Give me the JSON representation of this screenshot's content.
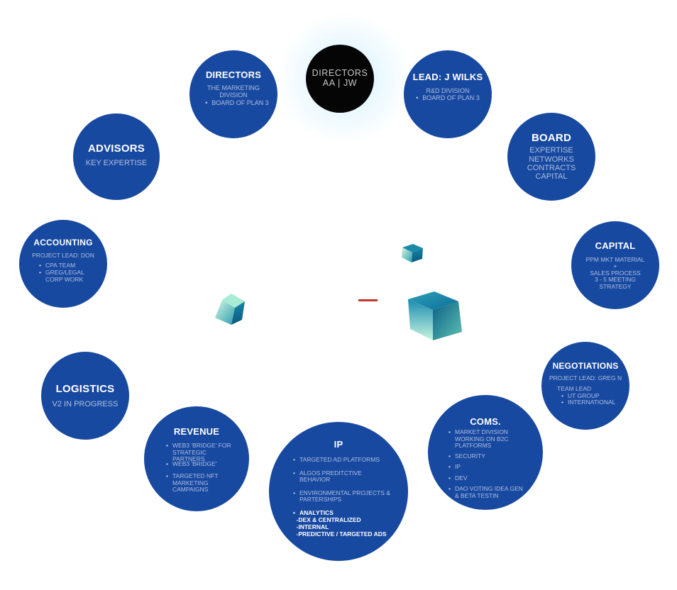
{
  "core": {
    "line1": "DIRECTORS",
    "line2": "AA | JW"
  },
  "directors": {
    "title": "DIRECTORS",
    "line1": "THE MARKETING",
    "line2": "DIVISION",
    "items": [
      "BOARD OF PLAN 3"
    ]
  },
  "lead": {
    "title": "LEAD: J WILKS",
    "line1": "R&D DIVISION",
    "items": [
      "BOARD OF PLAN 3"
    ]
  },
  "advisors": {
    "title": "ADVISORS",
    "line1": "KEY EXPERTISE"
  },
  "board": {
    "title": "BOARD",
    "lines": [
      "EXPERTISE",
      "NETWORKS",
      "CONTRACTS",
      "CAPITAL"
    ]
  },
  "accounting": {
    "title": "ACCOUNTING",
    "line1": "PROJECT LEAD: DON",
    "items": [
      "CPA TEAM",
      "GREG/LEGAL CORP WORK"
    ]
  },
  "capital": {
    "title": "CAPITAL",
    "lines": [
      "PPM MKT MATERIAL",
      "+",
      "SALES PROCESS",
      "3 - 5 MEETING",
      "STRATEGY"
    ]
  },
  "logistics": {
    "title": "LOGISTICS",
    "line1": "V2 IN PROGRESS"
  },
  "negotiations": {
    "title": "NEGOTIATIONS",
    "line1": "PROJECT LEAD: GREG N",
    "line2": "TEAM LEAD",
    "items": [
      "UT GROUP",
      "INTERNATIONAL"
    ]
  },
  "revenue": {
    "title": "REVENUE",
    "items": [
      "WEB3 'BRIDGE' FOR STRATEGIC PARTNERS",
      "WEB3 'BRIDGE'",
      "TARGETED NFT MARKETING CAMPAIGNS"
    ]
  },
  "ip": {
    "title": "IP",
    "items": [
      "TARGETED AD PLATFORMS",
      "ALGOS PREDITCTIVE BEHAVIOR",
      "ENVIRONMENTAL PROJECTS & PARTERSHIPS"
    ],
    "analytics": [
      "ANALYTICS",
      "-DEX & CENTRALIZED",
      "-INTERNAL",
      "-PREDICTIVE / TARGETED ADS"
    ]
  },
  "coms": {
    "title": "COMS.",
    "items": [
      "MARKET DIVISION WORKING ON B2C PLATFORMS",
      "SECURITY",
      "IP",
      "DEV",
      "DAO VOTING IDEA GEN & BETA TESTIN"
    ]
  },
  "colors": {
    "circle": "#1849a0",
    "core": "#050505",
    "accent_dash": "#c0392b",
    "cube_light": "#b8efd8",
    "cube_dark": "#0a6e9a"
  }
}
